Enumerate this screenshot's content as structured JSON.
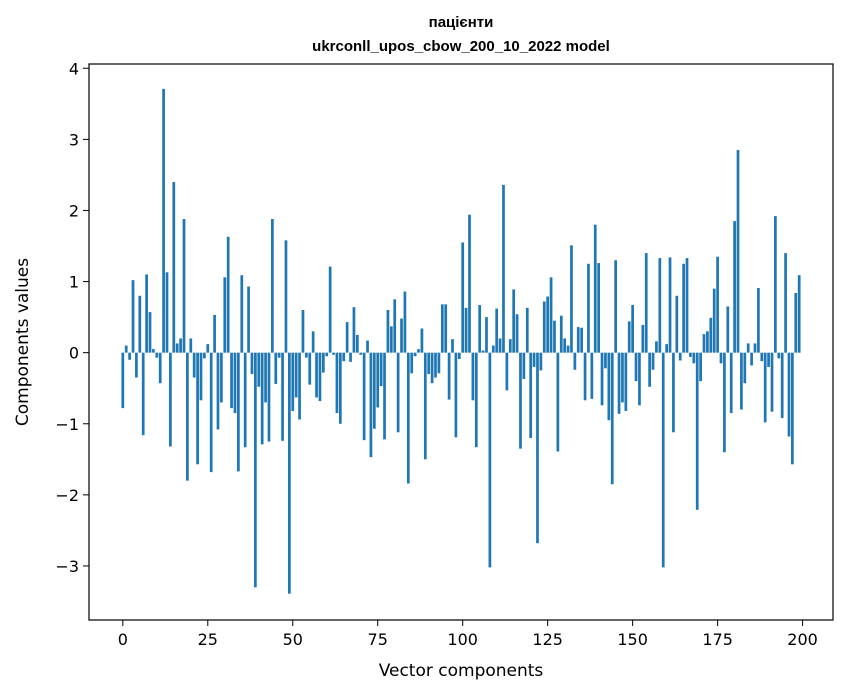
{
  "chart_data": {
    "type": "bar",
    "title_line1": "пацієнти",
    "title_line2": "ukrconll_upos_cbow_200_10_2022 model",
    "xlabel": "Vector components",
    "ylabel": "Components values",
    "xlim": [
      -9.95,
      208.95
    ],
    "ylim": [
      -3.76,
      4.06
    ],
    "xticks": [
      0,
      25,
      50,
      75,
      100,
      125,
      150,
      175,
      200
    ],
    "xtick_labels": [
      "0",
      "25",
      "50",
      "75",
      "100",
      "125",
      "150",
      "175",
      "200"
    ],
    "yticks": [
      -3,
      -2,
      -1,
      0,
      1,
      2,
      3,
      4
    ],
    "ytick_labels": [
      "−3",
      "−2",
      "−1",
      "0",
      "1",
      "2",
      "3",
      "4"
    ],
    "grid": false,
    "bar_color": "#1f77b4",
    "values": [
      -0.78,
      0.1,
      -0.1,
      1.02,
      -0.35,
      0.8,
      -1.16,
      1.1,
      0.57,
      0.05,
      -0.07,
      -0.43,
      3.71,
      1.13,
      -1.32,
      2.4,
      0.13,
      0.2,
      1.88,
      -1.8,
      0.2,
      -0.35,
      -1.57,
      -0.67,
      -0.08,
      0.12,
      -1.68,
      0.53,
      -1.08,
      -0.7,
      1.06,
      1.63,
      -0.78,
      -0.85,
      -1.67,
      1.09,
      -1.33,
      0.93,
      -0.3,
      -3.3,
      -0.48,
      -1.29,
      -0.7,
      -1.25,
      1.88,
      -0.44,
      -0.07,
      -1.24,
      1.58,
      -3.39,
      -0.82,
      -0.63,
      -0.94,
      0.6,
      -0.07,
      -0.45,
      0.3,
      -0.63,
      -0.68,
      -0.28,
      -0.05,
      1.21,
      -0.03,
      -0.85,
      -1.0,
      -0.12,
      0.43,
      -0.13,
      0.64,
      0.25,
      -0.03,
      -1.23,
      0.17,
      -1.47,
      -1.07,
      -0.77,
      -0.47,
      -1.22,
      0.6,
      0.37,
      0.75,
      -1.12,
      0.48,
      0.86,
      -1.84,
      -0.29,
      -0.05,
      0.05,
      0.34,
      -1.5,
      -0.3,
      -0.43,
      -0.35,
      -0.29,
      0.68,
      0.68,
      -0.66,
      0.19,
      -1.19,
      -0.09,
      1.55,
      0.63,
      1.94,
      -0.67,
      -1.33,
      0.67,
      0.03,
      0.5,
      -3.02,
      0.1,
      0.62,
      0.2,
      2.36,
      -0.53,
      0.19,
      0.89,
      0.54,
      -1.35,
      -0.37,
      0.63,
      -1.2,
      -0.2,
      -2.68,
      -0.25,
      0.72,
      0.79,
      1.06,
      0.45,
      -1.39,
      0.52,
      0.2,
      0.1,
      1.51,
      -0.24,
      0.36,
      0.35,
      -0.67,
      1.25,
      -0.65,
      1.8,
      1.26,
      -0.74,
      -0.22,
      -0.95,
      -1.85,
      1.3,
      -0.86,
      -0.7,
      -0.82,
      0.44,
      0.67,
      -0.4,
      -0.74,
      0.39,
      1.4,
      -0.48,
      -0.24,
      0.16,
      1.33,
      -3.02,
      0.12,
      1.34,
      -1.12,
      0.8,
      -0.11,
      1.25,
      1.33,
      -0.06,
      -0.15,
      -2.21,
      -0.4,
      0.26,
      0.3,
      0.49,
      0.9,
      1.35,
      -0.15,
      -1.4,
      0.65,
      -0.85,
      1.85,
      2.85,
      -0.8,
      -0.43,
      0.13,
      -0.18,
      0.13,
      0.91,
      -0.12,
      -0.98,
      -0.2,
      -0.83,
      1.92,
      -0.08,
      -0.92,
      1.4,
      -1.18,
      -1.57,
      0.84,
      1.09
    ]
  }
}
